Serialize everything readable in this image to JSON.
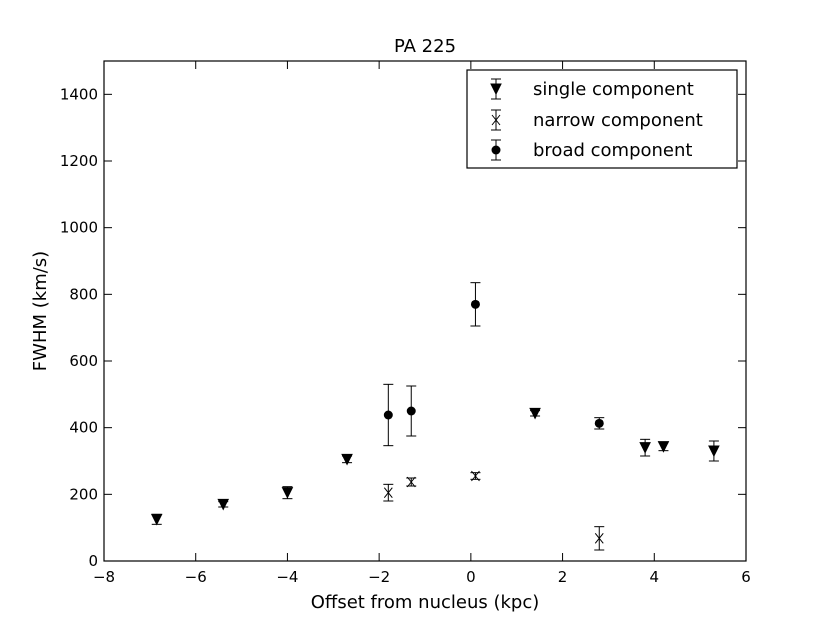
{
  "chart_data": {
    "type": "scatter",
    "title": "PA 225",
    "xlabel": "Offset from nucleus (kpc)",
    "ylabel": "FWHM (km/s)",
    "xlim": [
      -8,
      6
    ],
    "ylim": [
      0,
      1500
    ],
    "x_ticks": [
      -8,
      -6,
      -4,
      -2,
      0,
      2,
      4,
      6
    ],
    "y_ticks": [
      0,
      200,
      400,
      600,
      800,
      1000,
      1200,
      1400
    ],
    "x_tick_labels": [
      "−8",
      "−6",
      "−4",
      "−2",
      "0",
      "2",
      "4",
      "6"
    ],
    "y_tick_labels": [
      "0",
      "200",
      "400",
      "600",
      "800",
      "1000",
      "1200",
      "1400"
    ],
    "grid": false,
    "legend_position": "top-right",
    "series": [
      {
        "name": "single component",
        "marker": "triangle-down",
        "color": "#000000",
        "points": [
          {
            "x": -6.85,
            "y": 125,
            "err": 15
          },
          {
            "x": -5.4,
            "y": 170,
            "err": 8
          },
          {
            "x": -4.0,
            "y": 205,
            "err": 18
          },
          {
            "x": -2.7,
            "y": 305,
            "err": 10
          },
          {
            "x": 1.4,
            "y": 443,
            "err": 8
          },
          {
            "x": 3.8,
            "y": 340,
            "err": 25
          },
          {
            "x": 4.2,
            "y": 343,
            "err": 12
          },
          {
            "x": 5.3,
            "y": 330,
            "err": 30
          }
        ]
      },
      {
        "name": "narrow component",
        "marker": "x",
        "color": "#000000",
        "points": [
          {
            "x": -1.8,
            "y": 205,
            "err": 25
          },
          {
            "x": -1.3,
            "y": 237,
            "err": 12
          },
          {
            "x": 0.1,
            "y": 255,
            "err": 10
          },
          {
            "x": 2.8,
            "y": 68,
            "err": 35
          }
        ]
      },
      {
        "name": "broad component",
        "marker": "circle",
        "color": "#000000",
        "points": [
          {
            "x": -1.8,
            "y": 438,
            "err": 92
          },
          {
            "x": -1.3,
            "y": 450,
            "err": 75
          },
          {
            "x": 0.1,
            "y": 770,
            "err": 65
          },
          {
            "x": 2.8,
            "y": 413,
            "err": 17
          }
        ]
      }
    ]
  }
}
